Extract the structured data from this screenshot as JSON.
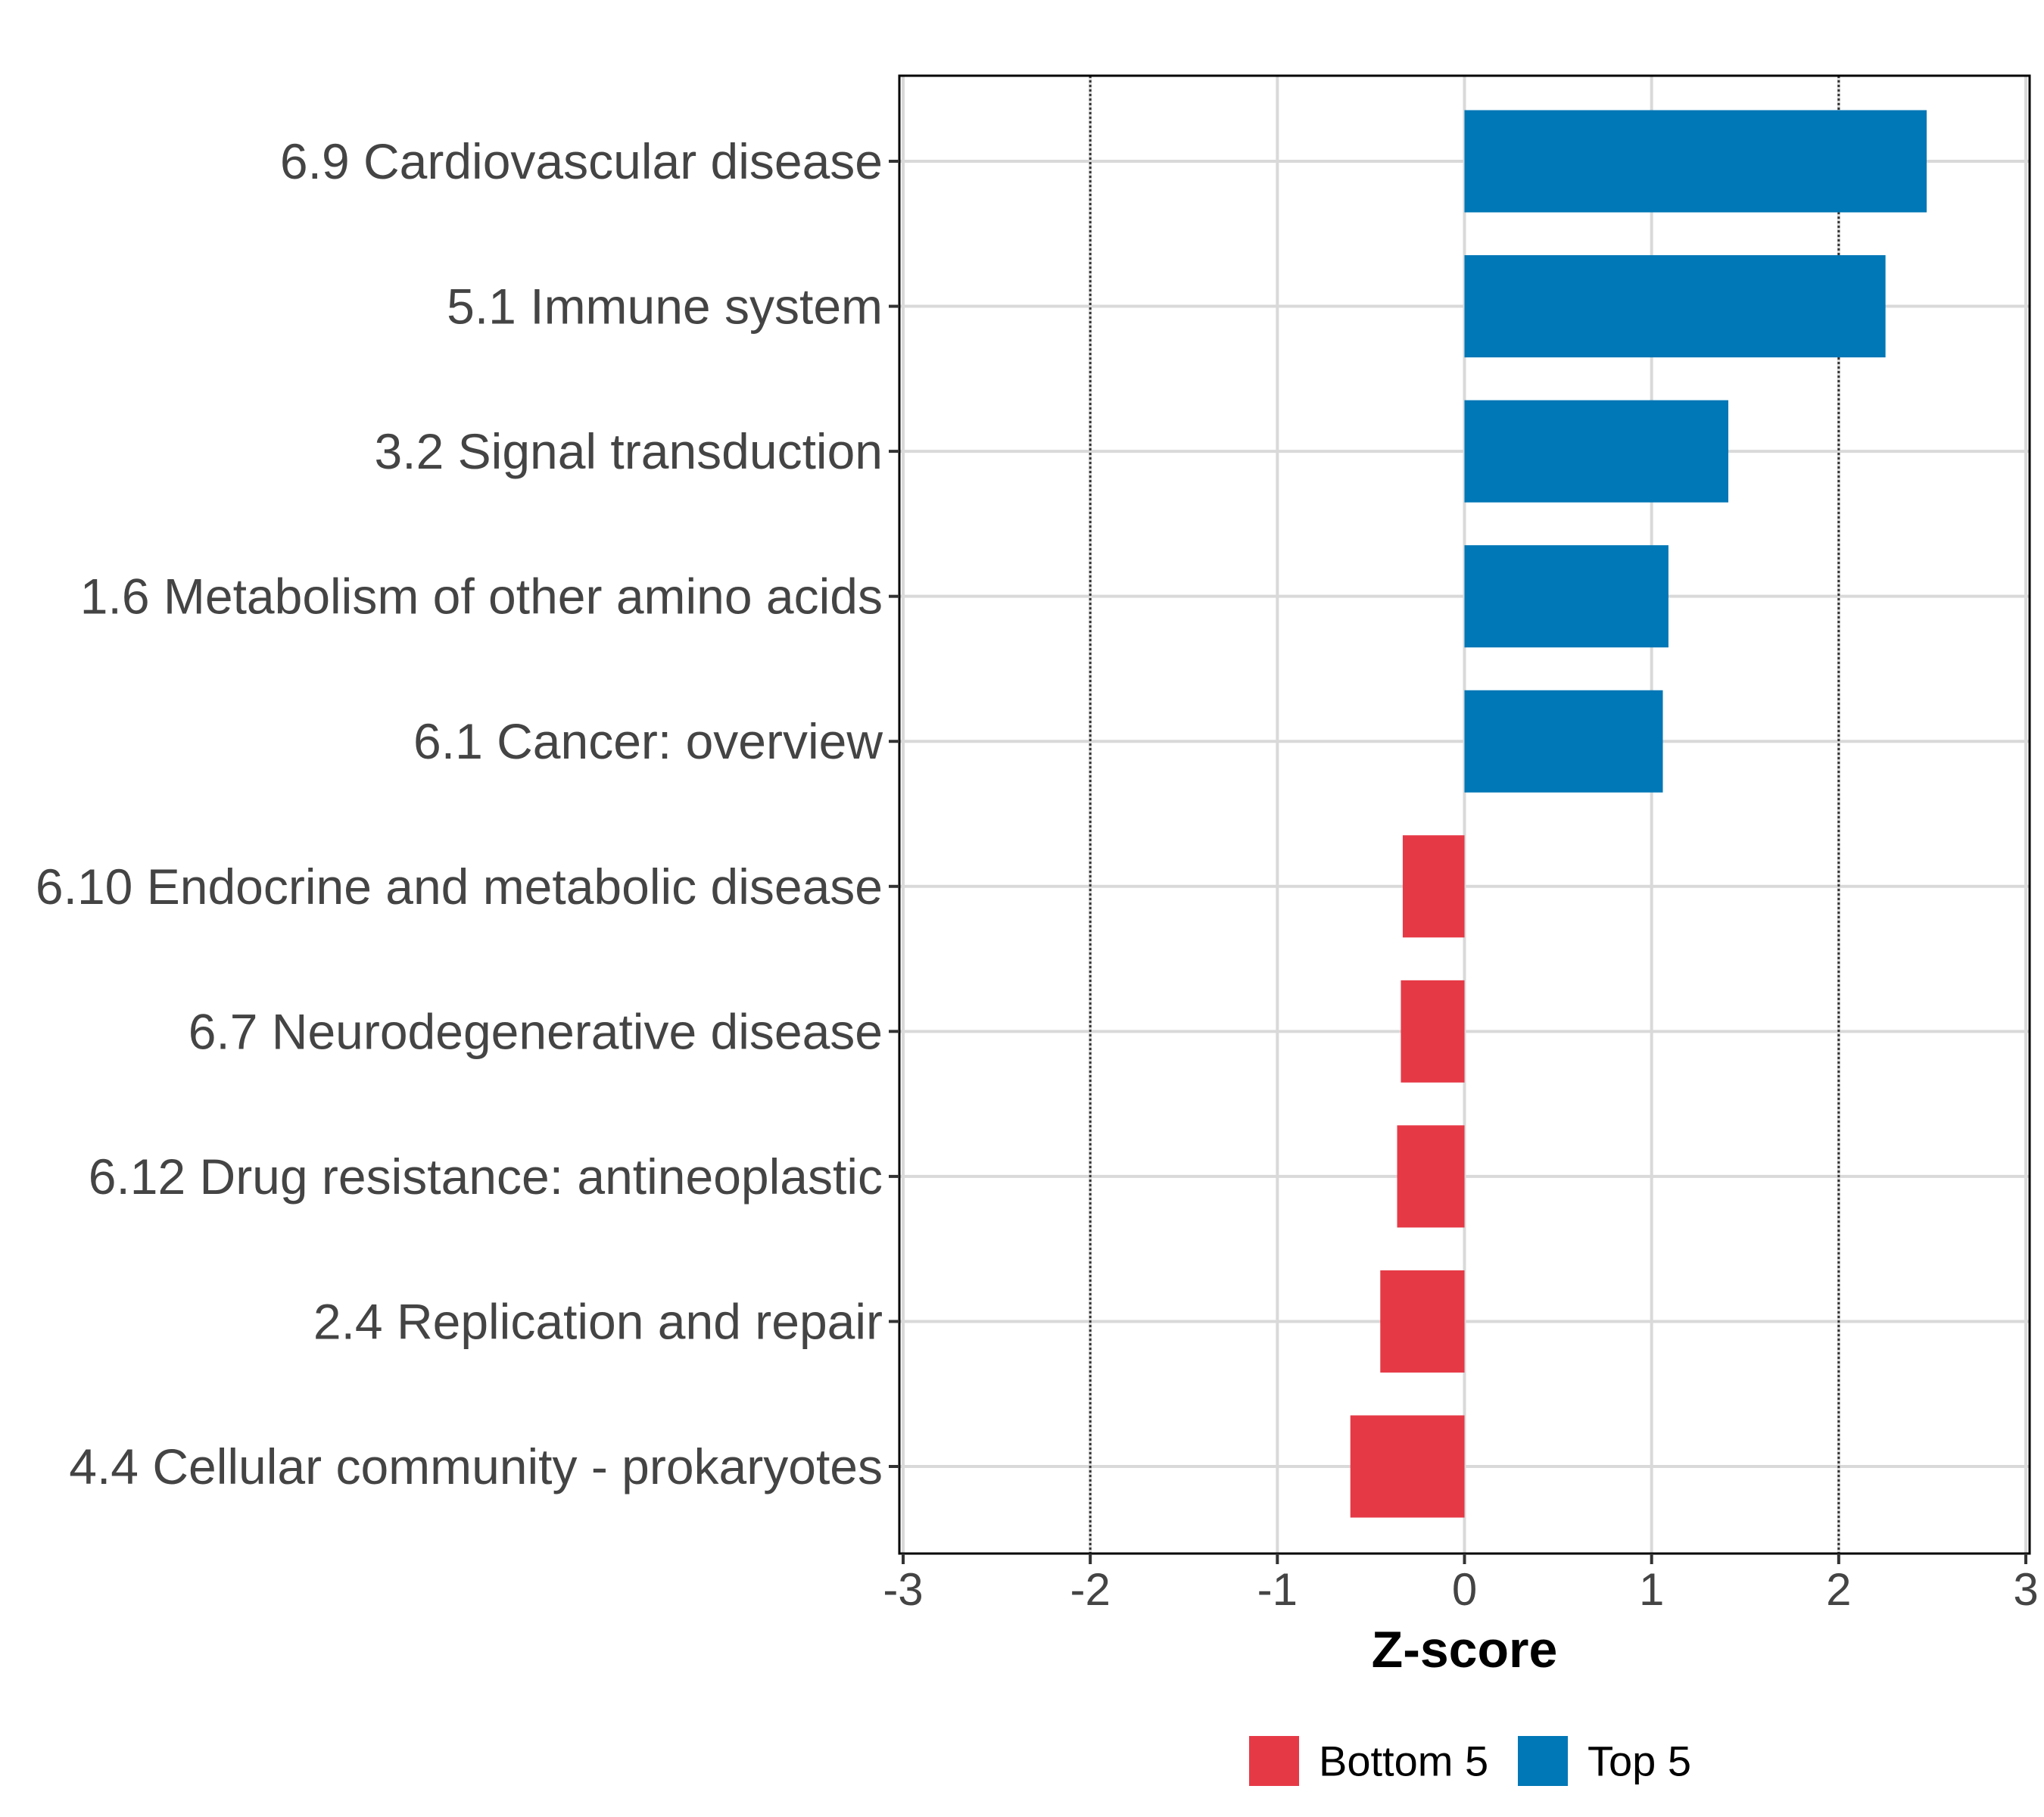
{
  "chart_data": {
    "type": "bar",
    "orientation": "horizontal",
    "categories": [
      "6.9 Cardiovascular disease",
      "5.1 Immune system",
      "3.2 Signal transduction",
      "1.6 Metabolism of other amino acids",
      "6.1 Cancer: overview",
      "6.10 Endocrine and metabolic disease",
      "6.7 Neurodegenerative disease",
      "6.12 Drug resistance: antineoplastic",
      "2.4 Replication and repair",
      "4.4 Cellular community - prokaryotes"
    ],
    "values": [
      2.47,
      2.25,
      1.41,
      1.09,
      1.06,
      -0.33,
      -0.34,
      -0.36,
      -0.45,
      -0.61
    ],
    "groups": [
      "Top 5",
      "Top 5",
      "Top 5",
      "Top 5",
      "Top 5",
      "Bottom 5",
      "Bottom 5",
      "Bottom 5",
      "Bottom 5",
      "Bottom 5"
    ],
    "xlabel": "Z-score",
    "ylabel": "",
    "xlim": [
      -3,
      3
    ],
    "xticks": [
      -3,
      -2,
      -1,
      0,
      1,
      2,
      3
    ],
    "tick_labels": [
      "-3",
      "-2",
      "-1",
      "0",
      "1",
      "2",
      "3"
    ],
    "reference_lines": [
      -2,
      2
    ],
    "grid": true,
    "legend": {
      "position": "bottom",
      "items": [
        {
          "label": "Bottom 5",
          "color": "#E63946"
        },
        {
          "label": "Top 5",
          "color": "#0077B6"
        }
      ]
    }
  },
  "colors": {
    "top": "#0077B6",
    "bottom": "#E63946",
    "grid": "#D9D9D9",
    "text": "#444444"
  }
}
